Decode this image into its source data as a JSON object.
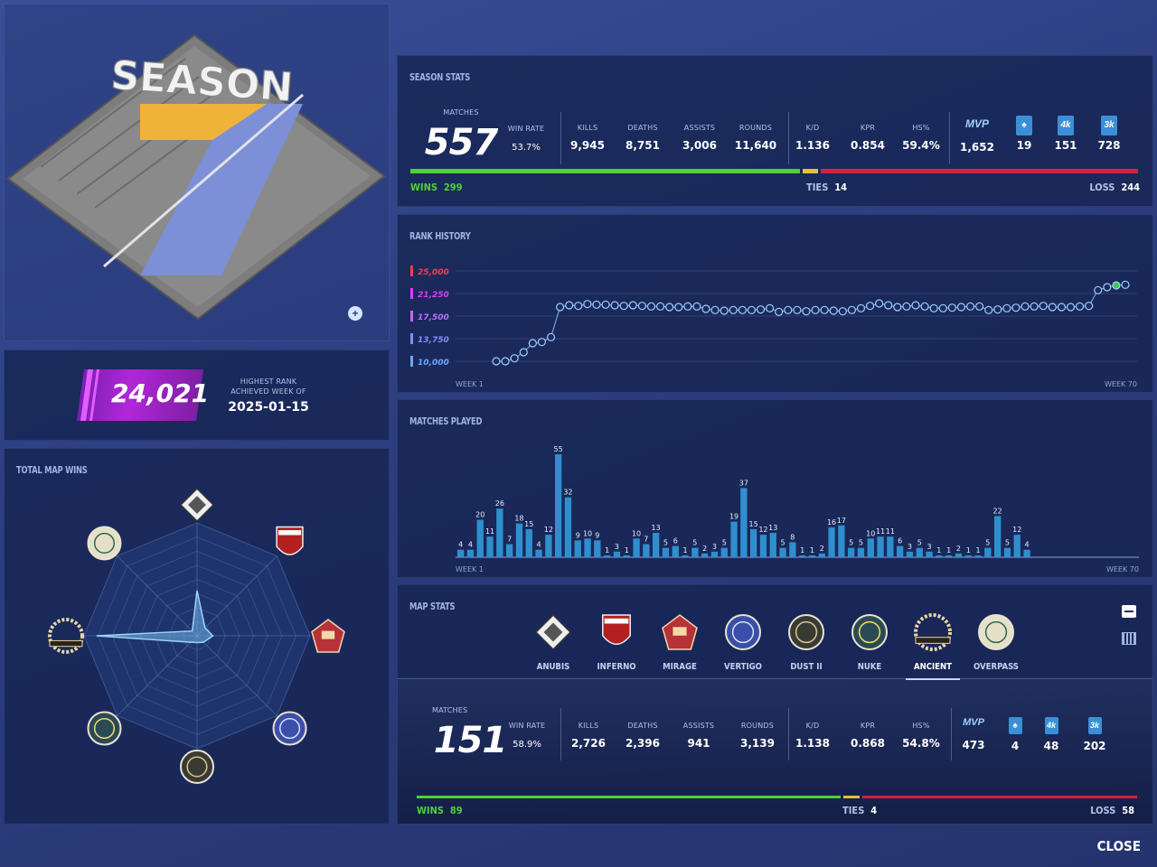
{
  "logo": {
    "text": "SEASON",
    "number": "7"
  },
  "rank": {
    "value": "24,021",
    "label": "HIGHEST RANK ACHIEVED WEEK OF",
    "date": "2025-01-15"
  },
  "season_stats": {
    "title": "SEASON STATS",
    "matches_label": "MATCHES",
    "matches": "557",
    "stats": [
      {
        "label": "WIN RATE",
        "value": "53.7%"
      },
      {
        "label": "KILLS",
        "value": "9,945"
      },
      {
        "label": "DEATHS",
        "value": "8,751"
      },
      {
        "label": "ASSISTS",
        "value": "3,006"
      },
      {
        "label": "ROUNDS",
        "value": "11,640"
      },
      {
        "label": "K/D",
        "value": "1.136"
      },
      {
        "label": "KPR",
        "value": "0.854"
      },
      {
        "label": "HS%",
        "value": "59.4%"
      }
    ],
    "awards": [
      {
        "icon": "mvp-star-icon",
        "value": "1,652"
      },
      {
        "icon": "ace-spade-icon",
        "value": "19"
      },
      {
        "icon": "4k",
        "value": "151"
      },
      {
        "icon": "3k",
        "value": "728"
      }
    ],
    "wins_label": "WINS",
    "wins": "299",
    "ties_label": "TIES",
    "ties": "14",
    "loss_label": "LOSS",
    "loss": "244"
  },
  "rank_history": {
    "title": "RANK HISTORY",
    "ticks": [
      "25,000",
      "21,250",
      "17,500",
      "13,750",
      "10,000"
    ],
    "week_start": "WEEK 1",
    "week_end": "WEEK 70"
  },
  "matches_played": {
    "title": "MATCHES PLAYED",
    "week_start": "WEEK 1",
    "week_end": "WEEK 70"
  },
  "map_wins": {
    "title": "TOTAL MAP WINS"
  },
  "map_stats": {
    "title": "MAP STATS",
    "maps": [
      "ANUBIS",
      "INFERNO",
      "MIRAGE",
      "VERTIGO",
      "DUST II",
      "NUKE",
      "ANCIENT",
      "OVERPASS"
    ],
    "selected": "ANCIENT",
    "matches_label": "MATCHES",
    "matches": "151",
    "stats": [
      {
        "label": "WIN RATE",
        "value": "58.9%"
      },
      {
        "label": "KILLS",
        "value": "2,726"
      },
      {
        "label": "DEATHS",
        "value": "2,396"
      },
      {
        "label": "ASSISTS",
        "value": "941"
      },
      {
        "label": "ROUNDS",
        "value": "3,139"
      },
      {
        "label": "K/D",
        "value": "1.138"
      },
      {
        "label": "KPR",
        "value": "0.868"
      },
      {
        "label": "HS%",
        "value": "54.8%"
      }
    ],
    "awards": [
      {
        "icon": "mvp-star-icon",
        "value": "473"
      },
      {
        "icon": "ace-spade-icon",
        "value": "4"
      },
      {
        "icon": "4k",
        "value": "48"
      },
      {
        "icon": "3k",
        "value": "202"
      }
    ],
    "wins_label": "WINS",
    "wins": "89",
    "ties_label": "TIES",
    "ties": "4",
    "loss_label": "LOSS",
    "loss": "58"
  },
  "close_label": "CLOSE",
  "colors": {
    "wins": "#4fd13a",
    "ties": "#e0c040",
    "loss": "#d8213f",
    "bars": "#2f8fce",
    "accent": "#b126d8"
  },
  "chart_data": [
    {
      "type": "line",
      "title": "RANK HISTORY",
      "x": [
        1,
        2,
        3,
        4,
        5,
        6,
        7,
        8,
        9,
        10,
        11,
        12,
        13,
        14,
        15,
        16,
        17,
        18,
        19,
        20,
        21,
        22,
        23,
        24,
        25,
        26,
        27,
        28,
        29,
        30,
        31,
        32,
        33,
        34,
        35,
        36,
        37,
        38,
        39,
        40,
        41,
        42,
        43,
        44,
        45,
        46,
        47,
        48,
        49,
        50,
        51,
        52,
        53,
        54,
        55,
        56,
        57,
        58,
        59,
        60,
        61,
        62,
        63,
        64,
        65,
        66,
        67,
        68,
        69,
        70
      ],
      "values": [
        10000,
        10000,
        10500,
        11500,
        13000,
        13200,
        14000,
        19000,
        19300,
        19200,
        19500,
        19400,
        19400,
        19300,
        19200,
        19300,
        19200,
        19100,
        19100,
        19000,
        19000,
        19100,
        19100,
        18700,
        18500,
        18400,
        18500,
        18500,
        18500,
        18600,
        18800,
        18200,
        18500,
        18500,
        18300,
        18500,
        18500,
        18400,
        18300,
        18500,
        18800,
        19200,
        19600,
        19300,
        19000,
        19100,
        19300,
        19100,
        18800,
        18800,
        18900,
        19000,
        19100,
        19100,
        18500,
        18600,
        18800,
        18900,
        19100,
        19100,
        19200,
        19000,
        19000,
        19000,
        19100,
        19200,
        21800,
        22300,
        22600,
        22700
      ],
      "ylim": [
        10000,
        25000
      ],
      "xlabel_start": "WEEK 1",
      "xlabel_end": "WEEK 70"
    },
    {
      "type": "bar",
      "title": "MATCHES PLAYED",
      "x": [
        1,
        2,
        3,
        4,
        5,
        6,
        7,
        8,
        9,
        10,
        11,
        12,
        13,
        14,
        15,
        16,
        17,
        18,
        19,
        20,
        21,
        22,
        23,
        24,
        25,
        26,
        27,
        28,
        29,
        30,
        31,
        32,
        33,
        34,
        35,
        36,
        37,
        38,
        39,
        40,
        41,
        42,
        43,
        44,
        45,
        46,
        47,
        48,
        49,
        50,
        51,
        52,
        53,
        54,
        55,
        56,
        57,
        58,
        59,
        60,
        61,
        62,
        63,
        64,
        65,
        66,
        67,
        68,
        69,
        70
      ],
      "values": [
        4,
        4,
        20,
        11,
        26,
        7,
        18,
        15,
        4,
        12,
        55,
        32,
        9,
        10,
        9,
        1,
        3,
        1,
        10,
        7,
        13,
        5,
        6,
        1,
        5,
        2,
        3,
        5,
        19,
        37,
        15,
        12,
        13,
        5,
        8,
        1,
        1,
        2,
        16,
        17,
        5,
        5,
        10,
        11,
        11,
        6,
        3,
        5,
        3,
        1,
        1,
        2,
        1,
        1,
        5,
        22,
        5,
        12,
        4,
        0,
        0,
        0,
        0,
        0,
        0,
        0,
        0,
        0,
        0,
        0
      ],
      "ylim": [
        0,
        55
      ]
    },
    {
      "type": "radar",
      "title": "TOTAL MAP WINS",
      "categories": [
        "ANUBIS",
        "INFERNO",
        "MIRAGE",
        "VERTIGO",
        "DUST II",
        "NUKE",
        "ANCIENT",
        "OVERPASS"
      ],
      "values": [
        40,
        10,
        14,
        8,
        5,
        8,
        89,
        0
      ],
      "ylim": [
        0,
        100
      ]
    }
  ]
}
